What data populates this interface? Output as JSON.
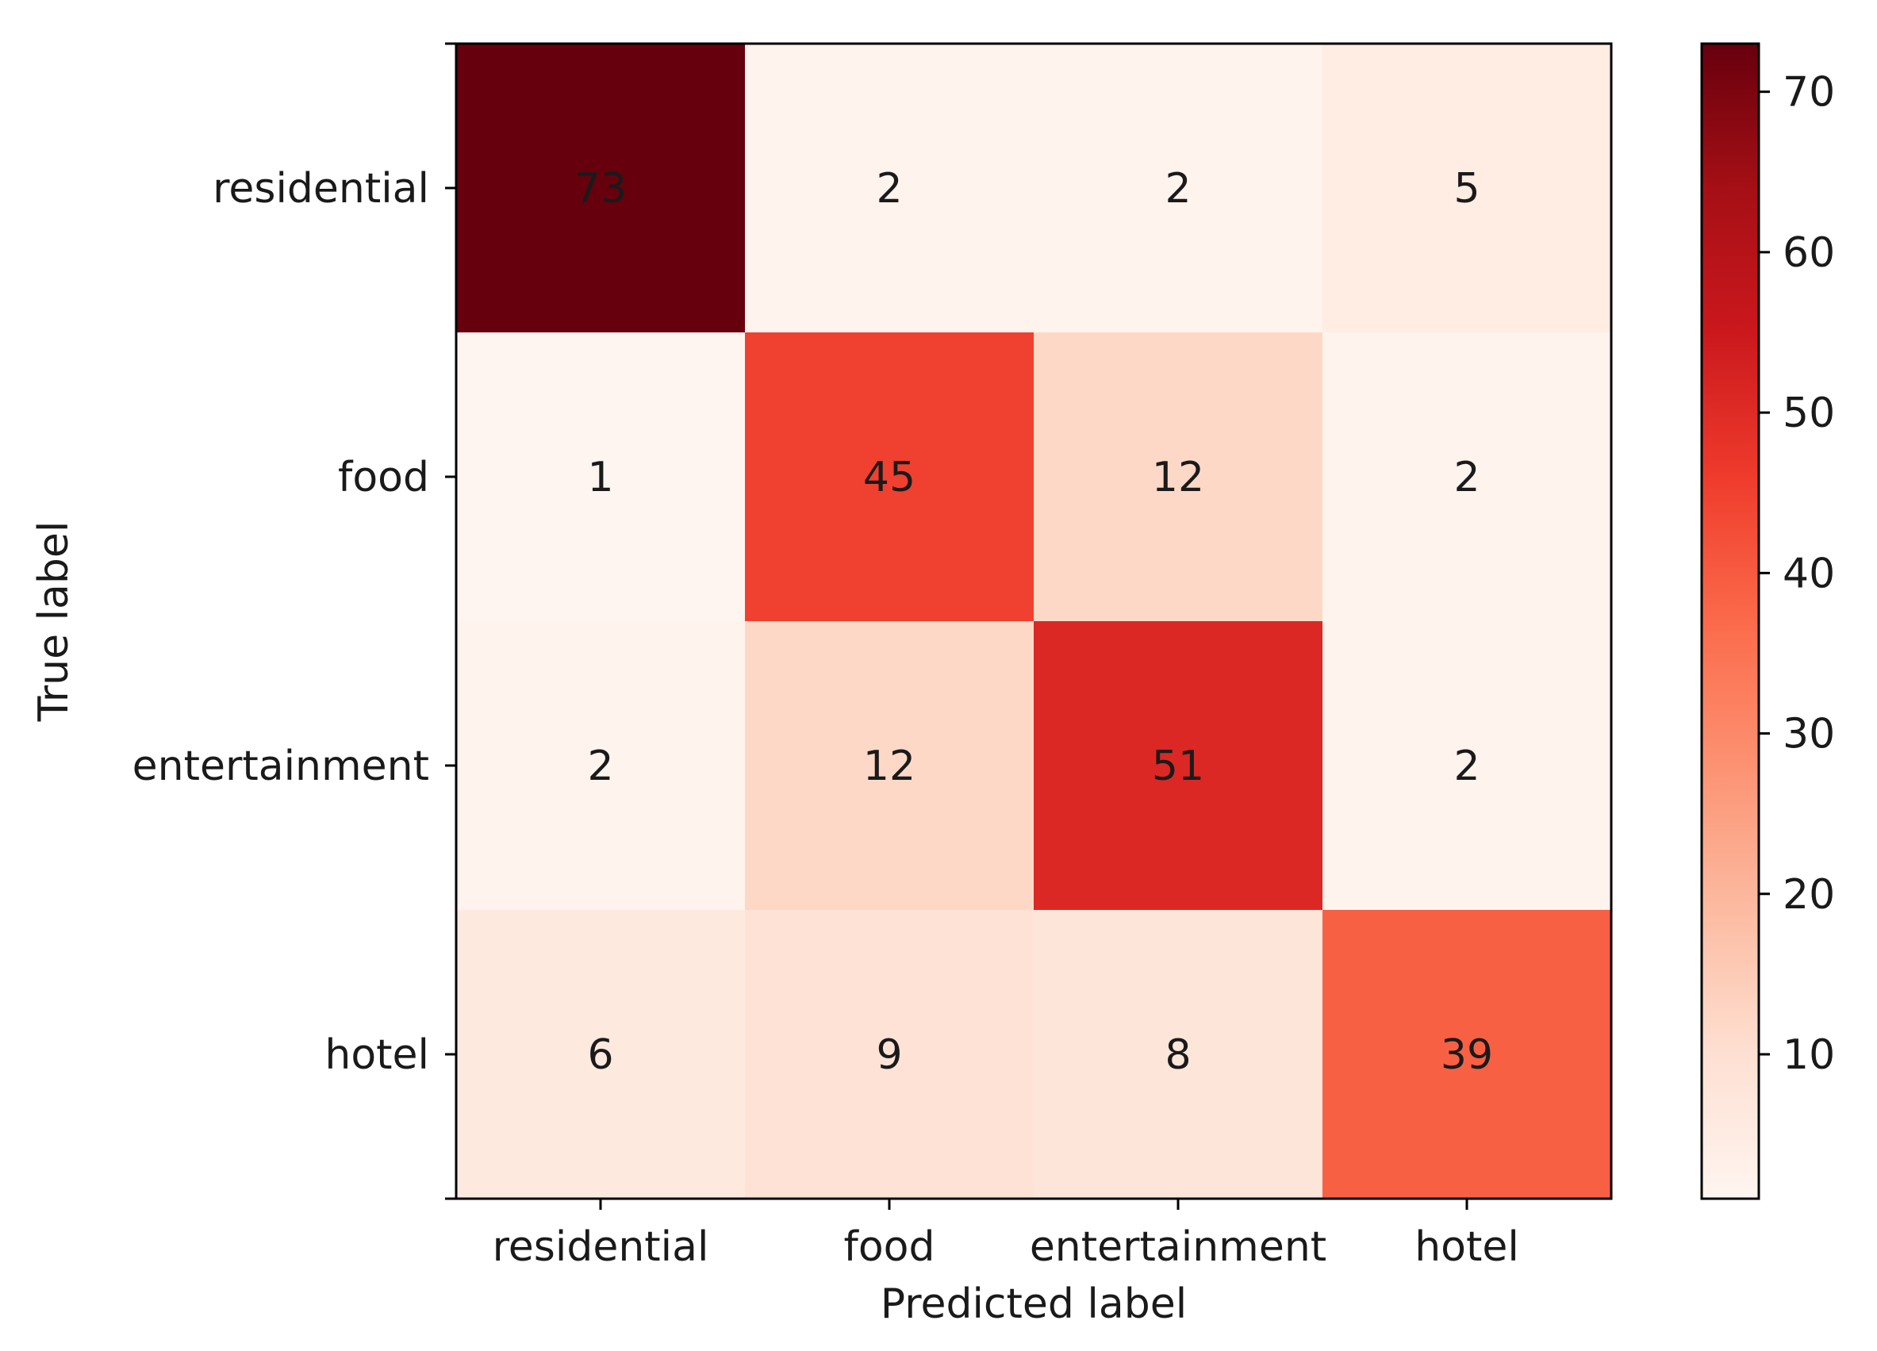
{
  "chart_data": {
    "type": "heatmap",
    "title": "",
    "xlabel": "Predicted label",
    "ylabel": "True label",
    "x_categories": [
      "residential",
      "food",
      "entertainment",
      "hotel"
    ],
    "y_categories": [
      "residential",
      "food",
      "entertainment",
      "hotel"
    ],
    "values": [
      [
        73,
        2,
        2,
        5
      ],
      [
        1,
        45,
        12,
        2
      ],
      [
        2,
        12,
        51,
        2
      ],
      [
        6,
        9,
        8,
        39
      ]
    ],
    "colormap": "Reds",
    "colorbar": {
      "min": 1,
      "max": 73,
      "ticks": [
        10,
        20,
        30,
        40,
        50,
        60,
        70
      ],
      "tick_labels": [
        "10",
        "20",
        "30",
        "40",
        "50",
        "60",
        "70"
      ]
    },
    "grid": false,
    "legend": "colorbar-right"
  }
}
